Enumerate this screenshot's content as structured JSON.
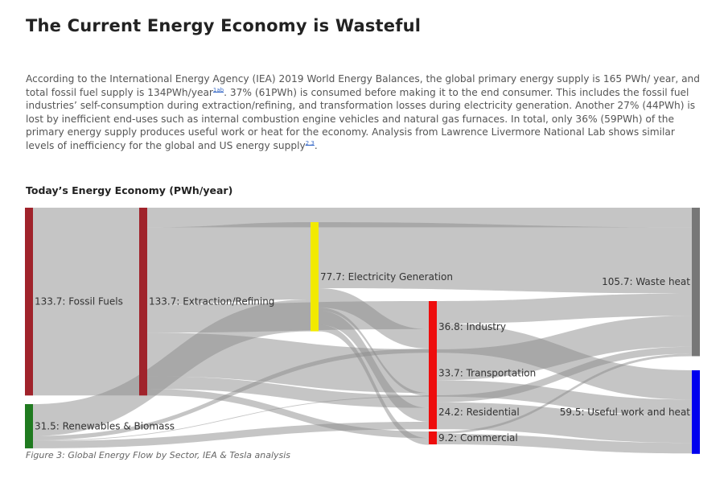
{
  "header": {
    "title": "The Current Energy Economy is Wasteful"
  },
  "intro": {
    "part1": "According to the International Energy Agency (IEA) 2019 World Energy Balances, the global primary energy supply is 165 PWh/ year, and total fossil fuel supply is 134PWh/year",
    "ref1": "1ab",
    "part2": ". 37% (61PWh) is consumed before making it to the end consumer. This includes the fossil fuel industries’ self-consumption during extraction/refining, and transformation losses during electricity generation. Another 27% (44PWh) is lost by inefficient end-uses such as internal combustion engine vehicles and natural gas furnaces. In total, only 36% (59PWh) of the primary energy supply produces useful work or heat for the economy. Analysis from Lawrence Livermore National Lab shows similar levels of inefficiency for the global and US energy supply",
    "ref2": "2,3",
    "part3": "."
  },
  "chart_title": "Today’s Energy Economy (PWh/year)",
  "caption": "Figure 3: Global Energy Flow by Sector, IEA & Tesla analysis",
  "chart_data": {
    "type": "sankey",
    "nodes": [
      {
        "id": "fossil",
        "label": "133.7: Fossil Fuels",
        "value": 133.7,
        "color": "#a0232b"
      },
      {
        "id": "renew",
        "label": "31.5: Renewables & Biomass",
        "value": 31.5,
        "color": "#1f7a1f"
      },
      {
        "id": "extract",
        "label": "133.7: Extraction/Refining",
        "value": 133.7,
        "color": "#a0232b"
      },
      {
        "id": "elec",
        "label": "77.7: Electricity Generation",
        "value": 77.7,
        "color": "#f2ea00"
      },
      {
        "id": "industry",
        "label": "36.8: Industry",
        "value": 36.8,
        "color": "#ee0d0d"
      },
      {
        "id": "transport",
        "label": "33.7: Transportation",
        "value": 33.7,
        "color": "#ee0d0d"
      },
      {
        "id": "residential",
        "label": "24.2: Residential",
        "value": 24.2,
        "color": "#ee0d0d"
      },
      {
        "id": "commercial",
        "label": "9.2: Commercial",
        "value": 9.2,
        "color": "#ee0d0d"
      },
      {
        "id": "waste",
        "label": "105.7: Waste heat",
        "value": 105.7,
        "color": "#777777"
      },
      {
        "id": "useful",
        "label": "59.5: Useful work and heat",
        "value": 59.5,
        "color": "#0000ee"
      }
    ],
    "links": [
      {
        "source": "fossil",
        "target": "extract",
        "value": 133.7
      },
      {
        "source": "extract",
        "target": "waste",
        "value": 14
      },
      {
        "source": "extract",
        "target": "elec",
        "value": 55
      },
      {
        "source": "extract",
        "target": "industry",
        "value": 20
      },
      {
        "source": "extract",
        "target": "transport",
        "value": 31
      },
      {
        "source": "extract",
        "target": "residential",
        "value": 9
      },
      {
        "source": "extract",
        "target": "commercial",
        "value": 4.7
      },
      {
        "source": "renew",
        "target": "elec",
        "value": 22.7
      },
      {
        "source": "renew",
        "target": "industry",
        "value": 3
      },
      {
        "source": "renew",
        "target": "residential",
        "value": 5.3
      },
      {
        "source": "renew",
        "target": "transport",
        "value": 0.5
      },
      {
        "source": "elec",
        "target": "waste",
        "value": 47
      },
      {
        "source": "elec",
        "target": "industry",
        "value": 13.8
      },
      {
        "source": "elec",
        "target": "transport",
        "value": 2.2
      },
      {
        "source": "elec",
        "target": "residential",
        "value": 9.9
      },
      {
        "source": "elec",
        "target": "commercial",
        "value": 4.8
      },
      {
        "source": "industry",
        "target": "waste",
        "value": 16
      },
      {
        "source": "industry",
        "target": "useful",
        "value": 20.8
      },
      {
        "source": "transport",
        "target": "waste",
        "value": 22
      },
      {
        "source": "transport",
        "target": "useful",
        "value": 11.7
      },
      {
        "source": "residential",
        "target": "waste",
        "value": 5
      },
      {
        "source": "residential",
        "target": "useful",
        "value": 19.2
      },
      {
        "source": "commercial",
        "target": "waste",
        "value": 1.7
      },
      {
        "source": "commercial",
        "target": "useful",
        "value": 7.5
      }
    ]
  }
}
